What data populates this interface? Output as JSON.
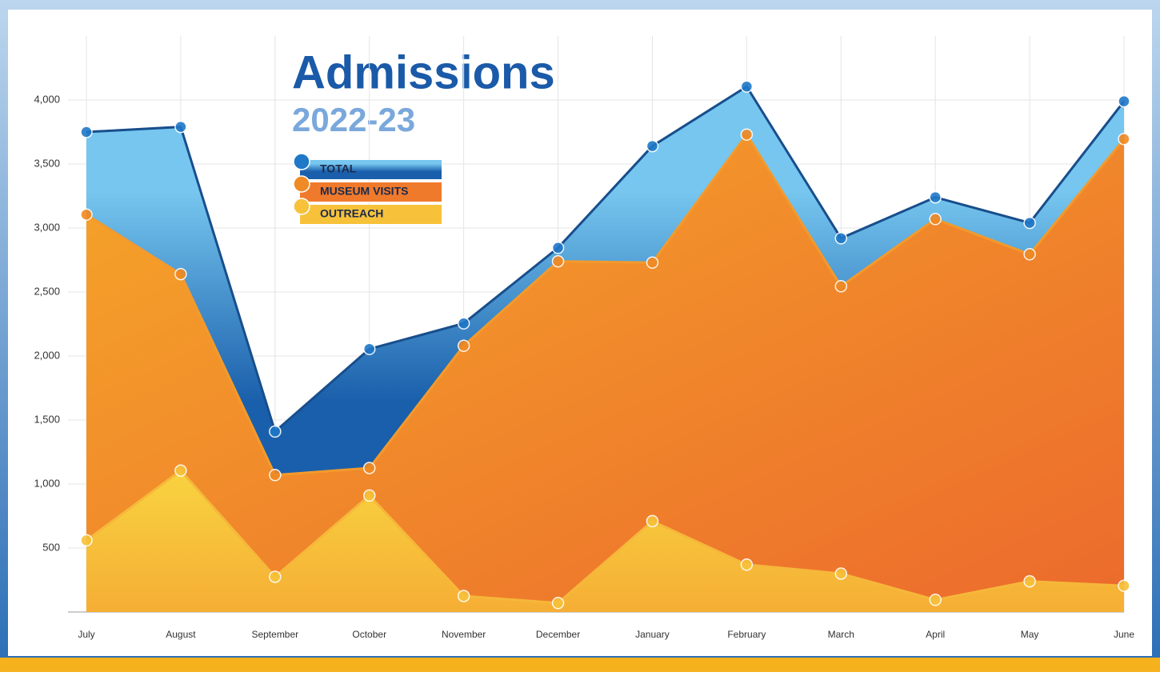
{
  "chart_data": {
    "type": "area",
    "title": "Admissions",
    "subtitle": "2022-23",
    "categories": [
      "July",
      "August",
      "September",
      "October",
      "November",
      "December",
      "January",
      "February",
      "March",
      "April",
      "May",
      "June"
    ],
    "series": [
      {
        "name": "TOTAL",
        "color": "#1f78c8",
        "values": [
          3750,
          3790,
          1410,
          2055,
          2255,
          2845,
          3640,
          4105,
          2920,
          3240,
          3040,
          3990
        ]
      },
      {
        "name": "MUSEUM VISITS",
        "color": "#f08a24",
        "values": [
          3105,
          2640,
          1070,
          1125,
          2080,
          2740,
          2730,
          3730,
          2545,
          3070,
          2795,
          3695
        ]
      },
      {
        "name": "OUTREACH",
        "color": "#f7c23a",
        "values": [
          560,
          1105,
          275,
          910,
          125,
          70,
          710,
          370,
          300,
          95,
          240,
          205
        ]
      }
    ],
    "ylim": [
      0,
      4500
    ],
    "yticks": [
      500,
      {
        "value": 1000,
        "label": "1,000"
      },
      {
        "value": 1500,
        "label": "1,500"
      },
      {
        "value": 2000,
        "label": "2,000"
      },
      {
        "value": 2500,
        "label": "2,500"
      },
      {
        "value": 3000,
        "label": "3,000"
      },
      {
        "value": 3500,
        "label": "3,500"
      },
      {
        "value": 4000,
        "label": "4,000"
      }
    ],
    "grid": true
  }
}
